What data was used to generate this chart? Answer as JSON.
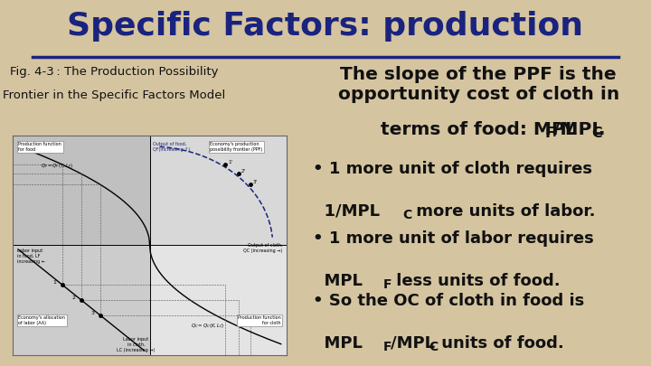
{
  "background_color": "#d4c4a0",
  "title": "Specific Factors: production",
  "title_color": "#1a237e",
  "title_fontsize": 26,
  "fig_caption_line1": "Fig. 4-3 : The Production Possibility",
  "fig_caption_line2": "Frontier in the Specific Factors Model",
  "fig_caption_fontsize": 9.5,
  "slope_text_line1": "The slope of the PPF is the",
  "slope_text_line2": "opportunity cost of cloth in",
  "slope_text_line3": "terms of food: MPL",
  "slope_sub_F": "F",
  "slope_mid": "/MPL",
  "slope_sub_C": "C",
  "slope_end": ".",
  "slope_fontsize": 14.5,
  "bullet1_line1": "• 1 more unit of cloth requires",
  "bullet1_line2_pre": "  1/MPL",
  "bullet1_sub": "C",
  "bullet1_post": " more units of labor.",
  "bullet2_line1": "• 1 more unit of labor requires",
  "bullet2_line2_pre": "  MPL",
  "bullet2_sub": "F",
  "bullet2_post": " less units of food.",
  "bullet3_line1": "• So the OC of cloth in food is",
  "bullet3_line2_pre": "  MPL",
  "bullet3_sub1": "F",
  "bullet3_mid": "/MPL",
  "bullet3_sub2": "C",
  "bullet3_post": " units of food.",
  "bullet_fontsize": 13,
  "divider_color": "#1a237e",
  "diagram_bg_topleft": "#c8c8c8",
  "diagram_bg_topright": "#d8d8d8",
  "diagram_bg_botleft": "#d0d0d0",
  "diagram_bg_botright": "#e0e0e0"
}
